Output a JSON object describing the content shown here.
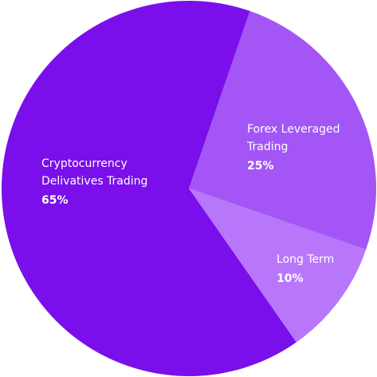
{
  "chart_data": {
    "type": "pie",
    "slices": [
      {
        "label_lines": [
          "Cryptocurrency",
          "Delivatives Trading"
        ],
        "value": 65,
        "value_label": "65%",
        "color": "#7a0feb"
      },
      {
        "label_lines": [
          "Forex Leveraged",
          "Trading"
        ],
        "value": 25,
        "value_label": "25%",
        "color": "#a356f5"
      },
      {
        "label_lines": [
          "Long Term"
        ],
        "value": 10,
        "value_label": "10%",
        "color": "#b877fb"
      }
    ],
    "title": "",
    "legend": "none"
  }
}
